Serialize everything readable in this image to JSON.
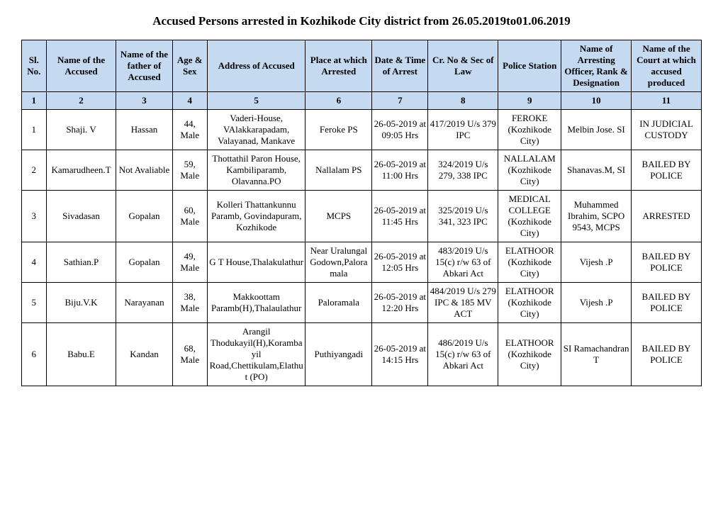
{
  "title": "Accused Persons arrested in   Kozhikode City  district from  26.05.2019to01.06.2019",
  "headers": [
    "Sl. No.",
    "Name of the Accused",
    "Name of the father of Accused",
    "Age & Sex",
    "Address of Accused",
    "Place at which Arrested",
    "Date & Time of Arrest",
    "Cr. No & Sec of Law",
    "Police Station",
    "Name of Arresting Officer, Rank & Designation",
    "Name of the Court at which accused produced"
  ],
  "numrow": [
    "1",
    "2",
    "3",
    "4",
    "5",
    "6",
    "7",
    "8",
    "9",
    "10",
    "11"
  ],
  "rows": [
    {
      "sl": "1",
      "name": "Shaji. V",
      "father": "Hassan",
      "age": "44, Male",
      "address": "Vaderi-House, VAlakkarapadam, Valayanad, Mankave",
      "place": "Feroke PS",
      "datetime": "26-05-2019 at 09:05 Hrs",
      "crno": "417/2019 U/s 379 IPC",
      "station": "FEROKE (Kozhikode City)",
      "officer": "Melbin Jose. SI",
      "court": "IN JUDICIAL CUSTODY"
    },
    {
      "sl": "2",
      "name": "Kamarudheen.T",
      "father": "Not Avaliable",
      "age": "59, Male",
      "address": "Thottathil Paron House, Kambiliparamb, Olavanna.PO",
      "place": "Nallalam PS",
      "datetime": "26-05-2019 at 11:00 Hrs",
      "crno": "324/2019 U/s 279, 338 IPC",
      "station": "NALLALAM (Kozhikode City)",
      "officer": "Shanavas.M, SI",
      "court": "BAILED BY POLICE"
    },
    {
      "sl": "3",
      "name": "Sivadasan",
      "father": "Gopalan",
      "age": "60, Male",
      "address": "Kolleri Thattankunnu Paramb, Govindapuram, Kozhikode",
      "place": "MCPS",
      "datetime": "26-05-2019 at 11:45 Hrs",
      "crno": "325/2019 U/s 341, 323 IPC",
      "station": "MEDICAL COLLEGE (Kozhikode City)",
      "officer": "Muhammed Ibrahim, SCPO 9543, MCPS",
      "court": "ARRESTED"
    },
    {
      "sl": "4",
      "name": "Sathian.P",
      "father": "Gopalan",
      "age": "49, Male",
      "address": "G T House,Thalakulathur",
      "place": "Near Uralungal Godown,Paloramala",
      "datetime": "26-05-2019 at 12:05 Hrs",
      "crno": "483/2019 U/s 15(c) r/w 63 of Abkari Act",
      "station": "ELATHOOR (Kozhikode City)",
      "officer": "Vijesh .P",
      "court": "BAILED BY POLICE"
    },
    {
      "sl": "5",
      "name": "Biju.V.K",
      "father": "Narayanan",
      "age": "38, Male",
      "address": "Makkoottam Paramb(H),Thalaulathur",
      "place": "Paloramala",
      "datetime": "26-05-2019 at 12:20 Hrs",
      "crno": "484/2019 U/s 279 IPC & 185 MV ACT",
      "station": "ELATHOOR (Kozhikode City)",
      "officer": "Vijesh .P",
      "court": "BAILED BY POLICE"
    },
    {
      "sl": "6",
      "name": "Babu.E",
      "father": "Kandan",
      "age": "68, Male",
      "address": "Arangil Thodukayil(H),Korambayil Road,Chettikulam,Elathut (PO)",
      "place": "Puthiyangadi",
      "datetime": "26-05-2019 at 14:15 Hrs",
      "crno": "486/2019 U/s 15(c) r/w 63 of Abkari Act",
      "station": "ELATHOOR (Kozhikode City)",
      "officer": "SI Ramachandran T",
      "court": "BAILED BY POLICE"
    }
  ]
}
